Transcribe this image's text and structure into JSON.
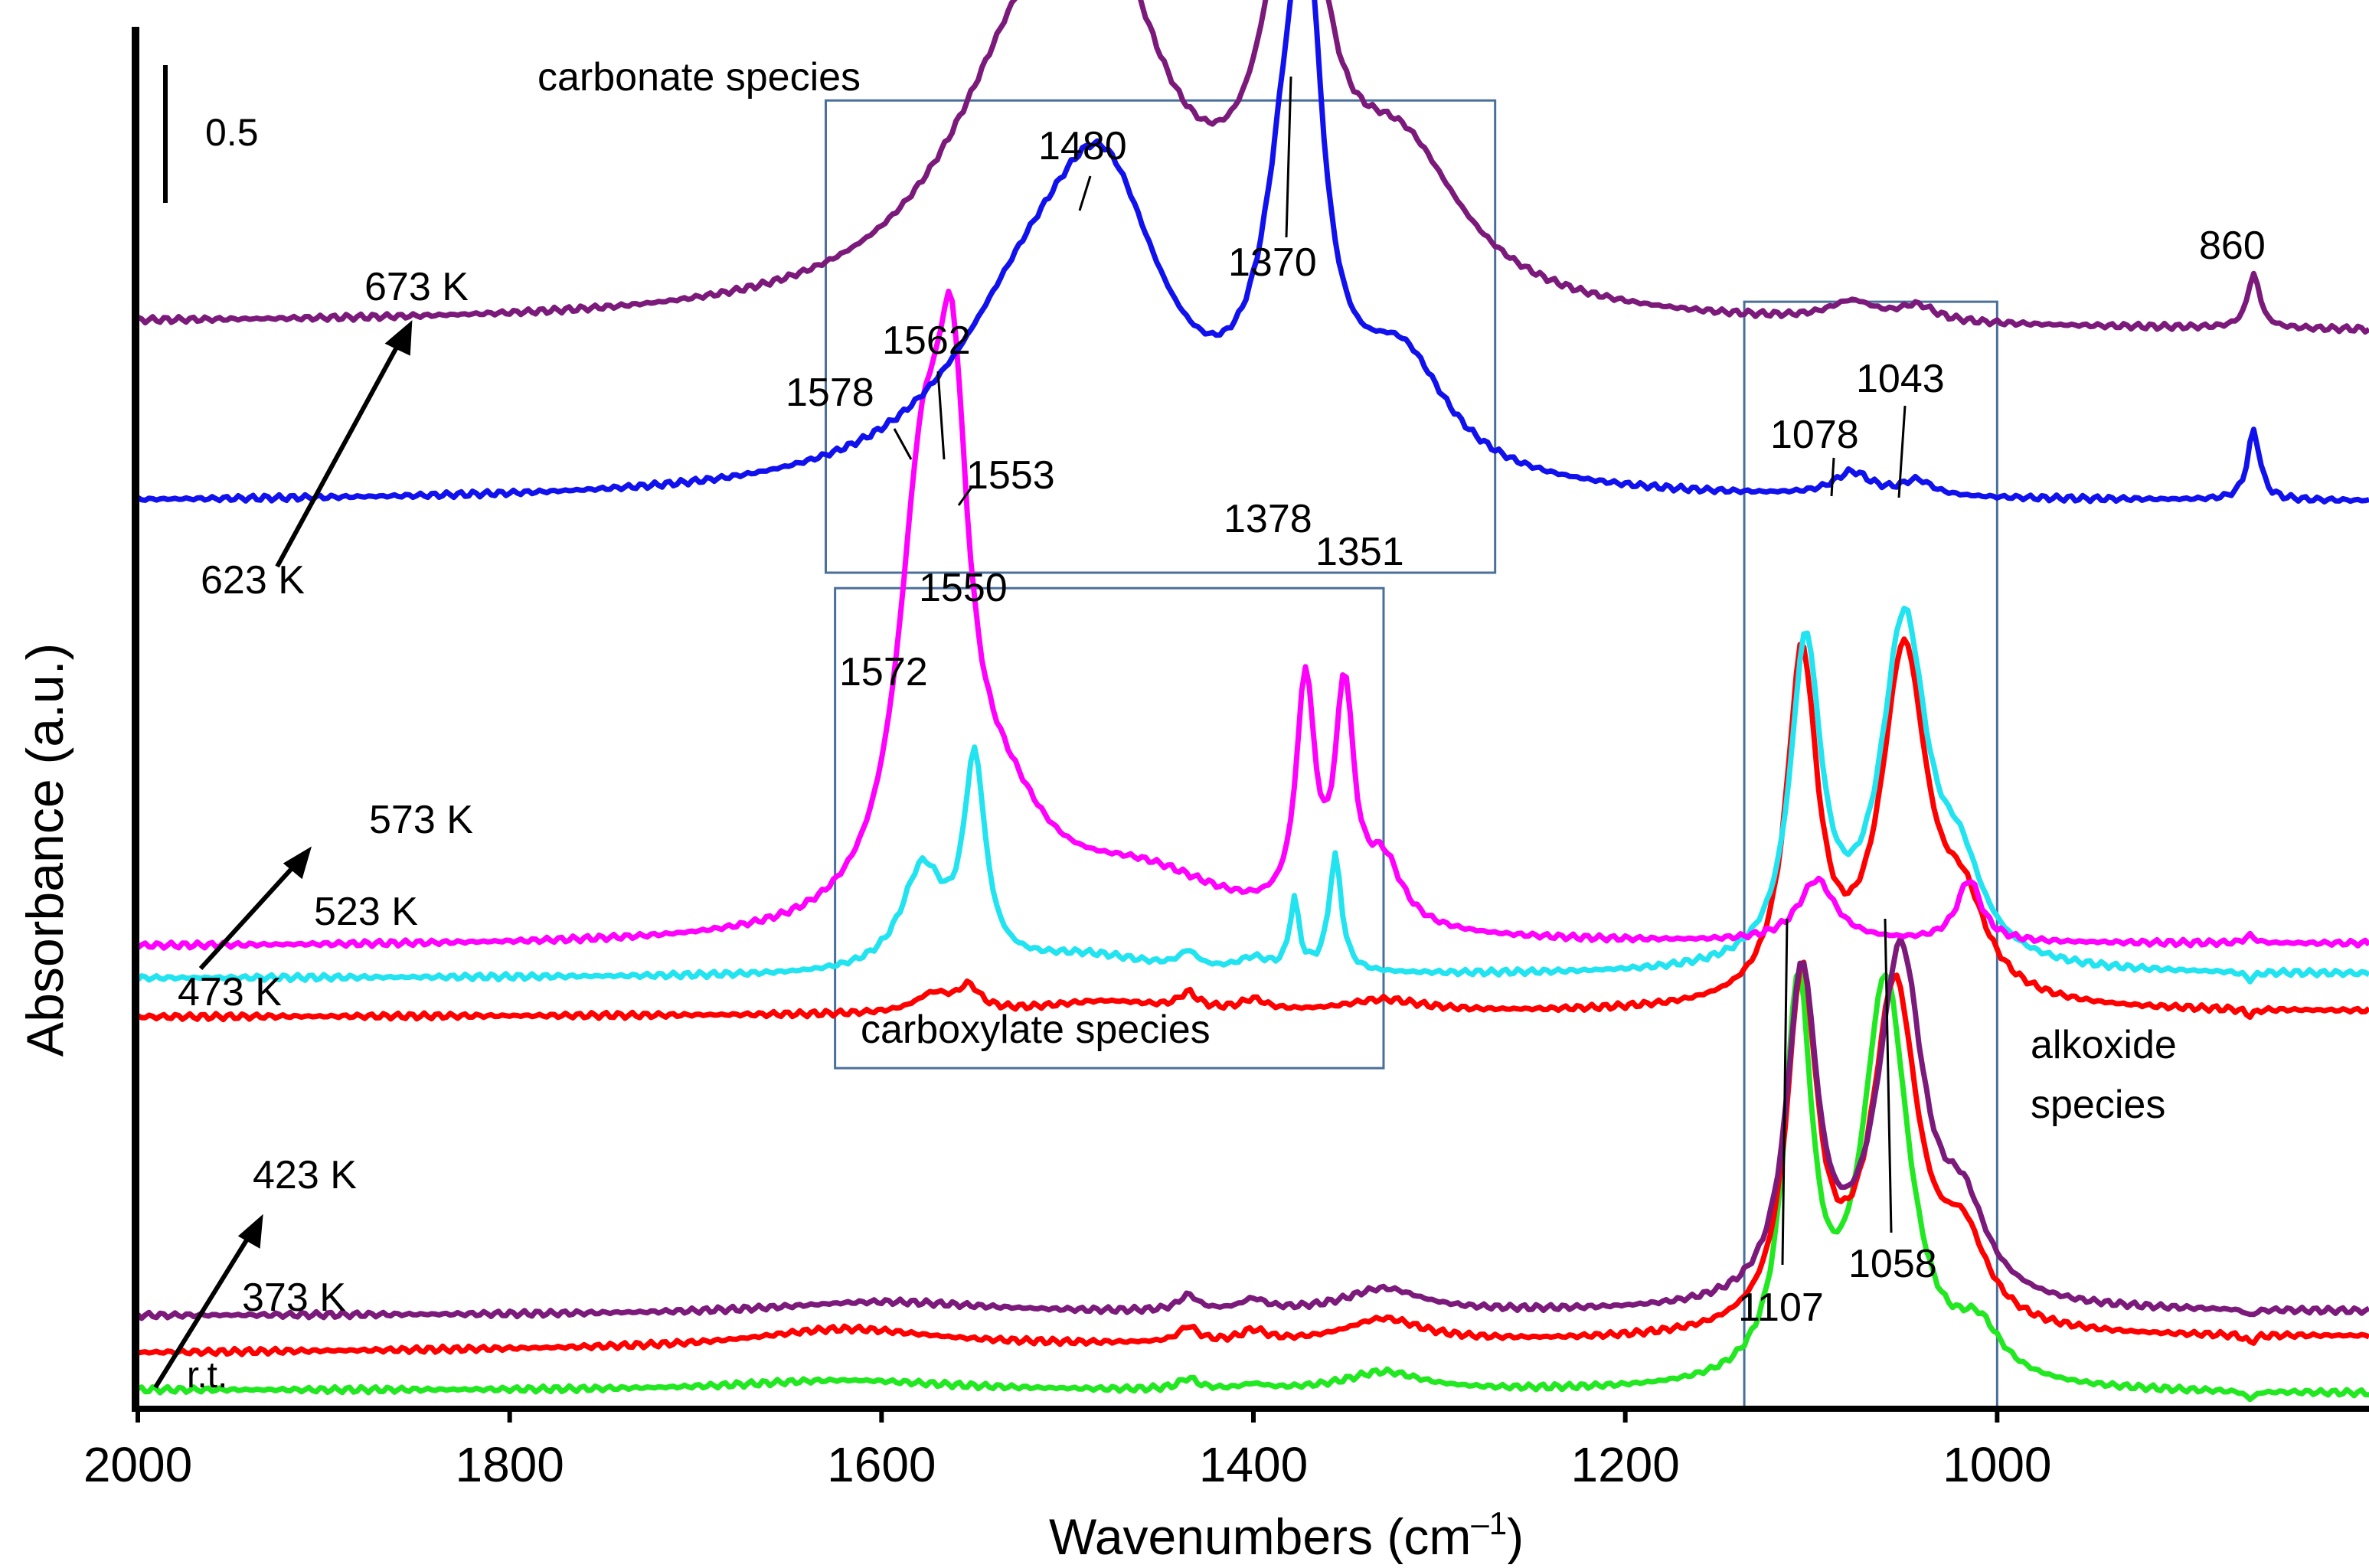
{
  "chart_data": {
    "type": "line",
    "title": "",
    "xlabel": "Wavenumbers (cm–1)",
    "xlabel_main": "Wavenumbers (cm",
    "xlabel_sup": "–1",
    "xlabel_close": ")",
    "ylabel": "Absorbance (a.u.)",
    "xlim": [
      2000,
      800
    ],
    "x_ticks": [
      2000,
      1800,
      1600,
      1400,
      1200,
      1000
    ],
    "x_tick_labels": [
      "2000",
      "1800",
      "1600",
      "1400",
      "1200",
      "1000"
    ],
    "scale_bar_label": "0.5",
    "grid": false,
    "series": [
      {
        "name": "r.t.",
        "color": "#22e822",
        "baseline": 0.12,
        "slope": -0.03,
        "bumps": [
          [
            1620,
            0.07,
            70
          ],
          [
            1435,
            0.07,
            6
          ],
          [
            1400,
            0.03,
            8
          ],
          [
            1330,
            0.12,
            25
          ],
          [
            1107,
            2.5,
            9
          ],
          [
            1060,
            2.6,
            15
          ],
          [
            1010,
            0.3,
            15
          ],
          [
            864,
            -0.05,
            3
          ]
        ]
      },
      {
        "name": "373 K",
        "color": "#ff0000",
        "baseline": 0.36,
        "slope": 0.1,
        "bumps": [
          [
            1620,
            0.12,
            60
          ],
          [
            1435,
            0.1,
            6
          ],
          [
            1400,
            0.07,
            8
          ],
          [
            1330,
            0.15,
            25
          ],
          [
            1105,
            2.25,
            10
          ],
          [
            1055,
            2.2,
            15
          ],
          [
            1018,
            0.5,
            15
          ],
          [
            864,
            -0.05,
            3
          ]
        ]
      },
      {
        "name": "423 K",
        "color": "#7b1a7b",
        "baseline": 0.6,
        "slope": 0.02,
        "bumps": [
          [
            1600,
            0.08,
            70
          ],
          [
            1435,
            0.1,
            6
          ],
          [
            1400,
            0.07,
            8
          ],
          [
            1330,
            0.15,
            25
          ],
          [
            1105,
            2.1,
            10
          ],
          [
            1052,
            2.25,
            15
          ],
          [
            1018,
            0.5,
            15
          ],
          [
            864,
            -0.04,
            3
          ]
        ]
      },
      {
        "name": "473 K",
        "color": "#ff0000",
        "baseline": 2.53,
        "slope": 0.03,
        "bumps": [
          [
            1572,
            0.12,
            12
          ],
          [
            1553,
            0.15,
            7
          ],
          [
            1480,
            0.08,
            40
          ],
          [
            1435,
            0.1,
            6
          ],
          [
            1400,
            0.07,
            8
          ],
          [
            1330,
            0.08,
            25
          ],
          [
            1105,
            2.22,
            10
          ],
          [
            1050,
            2.25,
            15
          ],
          [
            1018,
            0.5,
            15
          ],
          [
            864,
            -0.04,
            3
          ]
        ]
      },
      {
        "name": "523 K",
        "color": "#22e3f0",
        "baseline": 2.78,
        "slope": 0.02,
        "bumps": [
          [
            1578,
            0.65,
            14
          ],
          [
            1550,
            1.3,
            7
          ],
          [
            1490,
            0.12,
            45
          ],
          [
            1435,
            0.1,
            6
          ],
          [
            1378,
            0.45,
            3
          ],
          [
            1356,
            0.75,
            4
          ],
          [
            1400,
            0.08,
            10
          ],
          [
            1103,
            2.05,
            10
          ],
          [
            1050,
            2.2,
            15
          ],
          [
            1020,
            0.5,
            15
          ],
          [
            864,
            -0.05,
            3
          ]
        ]
      },
      {
        "name": "573 K",
        "color": "#ff00ff",
        "baseline": 2.98,
        "slope": 0.02,
        "bumps": [
          [
            1578,
            2.55,
            16
          ],
          [
            1562,
            2.45,
            10
          ],
          [
            1535,
            0.6,
            30
          ],
          [
            1460,
            0.4,
            60
          ],
          [
            1372,
            1.5,
            6
          ],
          [
            1351,
            1.45,
            6
          ],
          [
            1330,
            0.4,
            12
          ],
          [
            1097,
            0.4,
            12
          ],
          [
            1015,
            0.4,
            8
          ],
          [
            864,
            0.05,
            3
          ]
        ]
      },
      {
        "name": "623 K",
        "color": "#1111ee",
        "baseline": 5.85,
        "slope": 0.0,
        "bumps": [
          [
            1520,
            1.0,
            55
          ],
          [
            1480,
            1.55,
            38
          ],
          [
            1378,
            2.3,
            17
          ],
          [
            1370,
            1.3,
            8
          ],
          [
            1320,
            0.7,
            30
          ],
          [
            1078,
            0.15,
            12
          ],
          [
            1043,
            0.1,
            10
          ],
          [
            862,
            0.45,
            4
          ]
        ]
      },
      {
        "name": "673 K",
        "color": "#7b1a7b",
        "baseline": 7.0,
        "slope": -0.05,
        "bumps": [
          [
            1520,
            1.5,
            55
          ],
          [
            1480,
            1.55,
            38
          ],
          [
            1378,
            2.2,
            20
          ],
          [
            1370,
            0.5,
            8
          ],
          [
            1320,
            0.9,
            40
          ],
          [
            1078,
            0.12,
            15
          ],
          [
            1043,
            0.1,
            12
          ],
          [
            862,
            0.35,
            4
          ]
        ]
      }
    ],
    "peak_labels": [
      "1480",
      "1370",
      "1578",
      "1562",
      "1553",
      "1550",
      "1572",
      "1378",
      "1351",
      "1078",
      "1043",
      "860",
      "1107",
      "1058"
    ],
    "temperature_labels": [
      "673 K",
      "623 K",
      "573 K",
      "523 K",
      "473 K",
      "423 K",
      "373 K",
      "r.t."
    ],
    "region_labels": {
      "carbonate": "carbonate species",
      "carboxylate": "carboxylate species",
      "alkoxide_line1": "alkoxide",
      "alkoxide_line2": "species"
    },
    "regions": [
      {
        "name": "carbonate",
        "x_range": [
          1630,
          1270
        ],
        "y_range": [
          5.4,
          8.45
        ]
      },
      {
        "name": "carboxylate",
        "x_range": [
          1625,
          1330
        ],
        "y_range": [
          2.2,
          5.3
        ]
      },
      {
        "name": "alkoxide",
        "x_range": [
          1136,
          1000
        ],
        "y_range": [
          0.0,
          7.15
        ]
      }
    ]
  }
}
